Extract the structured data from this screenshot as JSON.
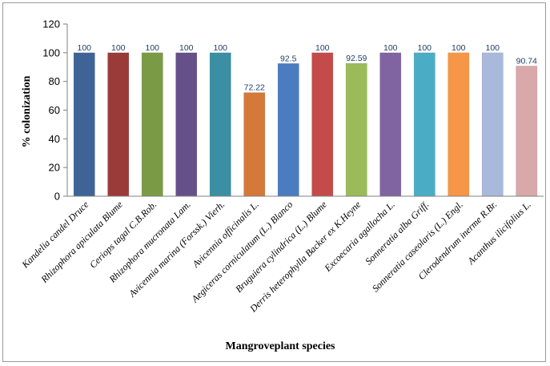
{
  "chart_data": {
    "type": "bar",
    "xlabel": "Mangroveplant species",
    "ylabel": "% colonization",
    "ylim": [
      0,
      120
    ],
    "yticks": [
      0,
      20,
      40,
      60,
      80,
      100,
      120
    ],
    "grid": false,
    "legend": "none",
    "categories": [
      "Kandelia candel Druce",
      "Rhizophora apiculata Blume",
      "Ceriops tagal C.B.Rob.",
      "Rhizophora mucronata Lam.",
      "Avicennia marina (Forssk.) Vierh.",
      "Avicennia officinalis L.",
      "Aegiceras corniculatum (L.) Blanco",
      "Bruguiera cylindrica (L.) Blume",
      "Derris heterophylla Backer ex K.Heyne",
      "Excoecaria agallocha L.",
      "Sonneratia alba Griff.",
      "Sonneratia caseolaris (L.) Engl.",
      "Clerodendrum inerme R.Br.",
      "Acanthus ilicifolius L."
    ],
    "values": [
      100,
      100,
      100,
      100,
      100,
      72.22,
      92.5,
      100,
      92.59,
      100,
      100,
      100,
      100,
      90.74
    ],
    "data_labels": [
      "100",
      "100",
      "100",
      "100",
      "100",
      "72.22",
      "92.5",
      "100",
      "92.59",
      "100",
      "100",
      "100",
      "100",
      "90.74"
    ],
    "colors": [
      "#3e6497",
      "#9b3b39",
      "#7a9a45",
      "#66508a",
      "#3a8fa3",
      "#d4793a",
      "#4b7cc0",
      "#c34c4a",
      "#9bbb59",
      "#8064a2",
      "#4bacc6",
      "#f79646",
      "#a9b9dc",
      "#d9a8a8"
    ]
  }
}
